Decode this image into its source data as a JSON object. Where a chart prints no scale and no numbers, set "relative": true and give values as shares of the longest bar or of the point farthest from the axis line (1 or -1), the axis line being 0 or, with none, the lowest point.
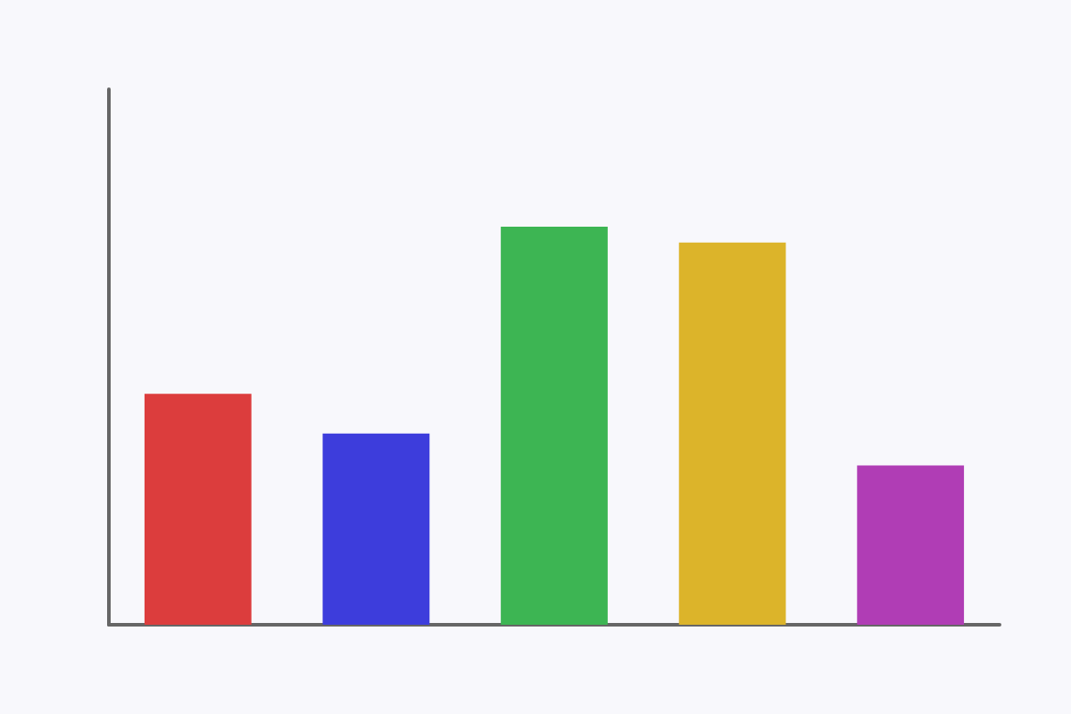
{
  "chart_data": {
    "type": "bar",
    "relative": true,
    "categories": [
      null,
      null,
      null,
      null,
      null
    ],
    "values": [
      0.58,
      0.48,
      1,
      0.96,
      0.4
    ],
    "colors": [
      "#dc3d3d",
      "#3d3ddc",
      "#3db553",
      "#dcb42a",
      "#b03db5"
    ]
  }
}
